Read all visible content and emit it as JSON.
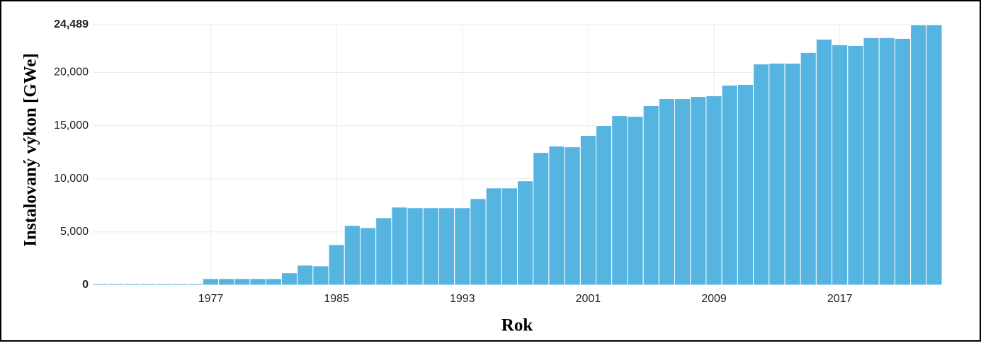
{
  "chart_data": {
    "type": "bar",
    "x_label": "Rok",
    "y_label": "Instalovaný výkon [GWe]",
    "color": "#56b4e0",
    "grid": true,
    "x": [
      1970,
      1971,
      1972,
      1973,
      1974,
      1975,
      1976,
      1977,
      1978,
      1979,
      1980,
      1981,
      1982,
      1983,
      1984,
      1985,
      1986,
      1987,
      1988,
      1989,
      1990,
      1991,
      1992,
      1993,
      1994,
      1995,
      1996,
      1997,
      1998,
      1999,
      2000,
      2001,
      2002,
      2003,
      2004,
      2005,
      2006,
      2007,
      2008,
      2009,
      2010,
      2011,
      2012,
      2013,
      2014,
      2015,
      2016,
      2017,
      2018,
      2019,
      2020,
      2021,
      2022,
      2023
    ],
    "values": [
      130,
      130,
      130,
      130,
      130,
      130,
      130,
      600,
      600,
      600,
      600,
      600,
      1150,
      1870,
      1800,
      3800,
      5600,
      5400,
      6330,
      7330,
      7270,
      7270,
      7270,
      7270,
      8130,
      9130,
      9130,
      9800,
      12470,
      13070,
      13000,
      14070,
      15000,
      15930,
      15870,
      16870,
      17530,
      17530,
      17730,
      17800,
      18800,
      18870,
      20800,
      20870,
      20870,
      21870,
      23130,
      22600,
      22530,
      23270,
      23270,
      23200,
      24489,
      24489
    ],
    "xlim": [
      1969.5,
      2023.5
    ],
    "xticks": [
      1977,
      1985,
      1993,
      2001,
      2009,
      2017
    ],
    "ylim": [
      0,
      24489
    ],
    "yticks": [
      0,
      {
        "value": 5000,
        "label": "5,000"
      },
      {
        "value": 10000,
        "label": "10,000"
      },
      {
        "value": 15000,
        "label": "15,000"
      },
      {
        "value": 20000,
        "label": "20,000"
      },
      {
        "value": 24489,
        "label": "24,489"
      }
    ]
  }
}
